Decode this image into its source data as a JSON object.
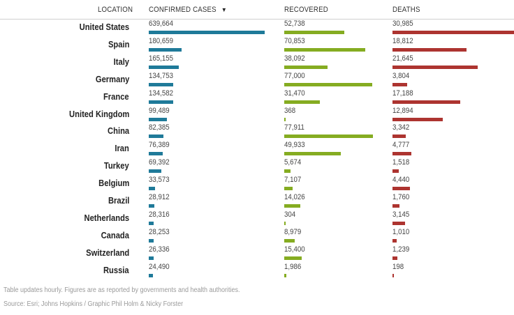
{
  "header": {
    "location": "LOCATION",
    "confirmed": "CONFIRMED CASES",
    "recovered": "RECOVERED",
    "deaths": "DEATHS",
    "sort_icon": "▼"
  },
  "colors": {
    "confirmed": "#1f7a99",
    "recovered": "#85ac21",
    "deaths": "#ad3430"
  },
  "chart_data": {
    "type": "table",
    "columns": [
      "LOCATION",
      "CONFIRMED CASES",
      "RECOVERED",
      "DEATHS"
    ],
    "sorted_by": "CONFIRMED CASES",
    "rows": [
      {
        "location": "United States",
        "confirmed": 639664,
        "recovered": 52738,
        "deaths": 30985,
        "confirmed_label": "639,664",
        "recovered_label": "52,738",
        "deaths_label": "30,985"
      },
      {
        "location": "Spain",
        "confirmed": 180659,
        "recovered": 70853,
        "deaths": 18812,
        "confirmed_label": "180,659",
        "recovered_label": "70,853",
        "deaths_label": "18,812"
      },
      {
        "location": "Italy",
        "confirmed": 165155,
        "recovered": 38092,
        "deaths": 21645,
        "confirmed_label": "165,155",
        "recovered_label": "38,092",
        "deaths_label": "21,645"
      },
      {
        "location": "Germany",
        "confirmed": 134753,
        "recovered": 77000,
        "deaths": 3804,
        "confirmed_label": "134,753",
        "recovered_label": "77,000",
        "deaths_label": "3,804"
      },
      {
        "location": "France",
        "confirmed": 134582,
        "recovered": 31470,
        "deaths": 17188,
        "confirmed_label": "134,582",
        "recovered_label": "31,470",
        "deaths_label": "17,188"
      },
      {
        "location": "United Kingdom",
        "confirmed": 99489,
        "recovered": 368,
        "deaths": 12894,
        "confirmed_label": "99,489",
        "recovered_label": "368",
        "deaths_label": "12,894"
      },
      {
        "location": "China",
        "confirmed": 82385,
        "recovered": 77911,
        "deaths": 3342,
        "confirmed_label": "82,385",
        "recovered_label": "77,911",
        "deaths_label": "3,342"
      },
      {
        "location": "Iran",
        "confirmed": 76389,
        "recovered": 49933,
        "deaths": 4777,
        "confirmed_label": "76,389",
        "recovered_label": "49,933",
        "deaths_label": "4,777"
      },
      {
        "location": "Turkey",
        "confirmed": 69392,
        "recovered": 5674,
        "deaths": 1518,
        "confirmed_label": "69,392",
        "recovered_label": "5,674",
        "deaths_label": "1,518"
      },
      {
        "location": "Belgium",
        "confirmed": 33573,
        "recovered": 7107,
        "deaths": 4440,
        "confirmed_label": "33,573",
        "recovered_label": "7,107",
        "deaths_label": "4,440"
      },
      {
        "location": "Brazil",
        "confirmed": 28912,
        "recovered": 14026,
        "deaths": 1760,
        "confirmed_label": "28,912",
        "recovered_label": "14,026",
        "deaths_label": "1,760"
      },
      {
        "location": "Netherlands",
        "confirmed": 28316,
        "recovered": 304,
        "deaths": 3145,
        "confirmed_label": "28,316",
        "recovered_label": "304",
        "deaths_label": "3,145"
      },
      {
        "location": "Canada",
        "confirmed": 28253,
        "recovered": 8979,
        "deaths": 1010,
        "confirmed_label": "28,253",
        "recovered_label": "8,979",
        "deaths_label": "1,010"
      },
      {
        "location": "Switzerland",
        "confirmed": 26336,
        "recovered": 15400,
        "deaths": 1239,
        "confirmed_label": "26,336",
        "recovered_label": "15,400",
        "deaths_label": "1,239"
      },
      {
        "location": "Russia",
        "confirmed": 24490,
        "recovered": 1986,
        "deaths": 198,
        "confirmed_label": "24,490",
        "recovered_label": "1,986",
        "deaths_label": "198"
      }
    ]
  },
  "footer": {
    "note": "Table updates hourly. Figures are as reported by governments and health authorities.",
    "source": "Source: Esri; Johns Hopkins / Graphic Phil Holm & Nicky Forster"
  }
}
